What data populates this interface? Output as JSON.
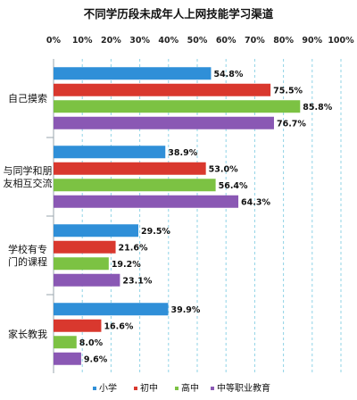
{
  "chart_data": {
    "type": "bar",
    "orientation": "horizontal",
    "title": "不同学历段未成年人上网技能学习渠道",
    "xlim": [
      0,
      100
    ],
    "x_ticks": [
      "0%",
      "10%",
      "20%",
      "30%",
      "40%",
      "50%",
      "60%",
      "70%",
      "80%",
      "90%",
      "100%"
    ],
    "grid": true,
    "legend_position": "bottom",
    "categories": [
      [
        "自己摸索"
      ],
      [
        "与同学和朋",
        "友相互交流"
      ],
      [
        "学校有专",
        "门的课程"
      ],
      [
        "家长教我"
      ]
    ],
    "series": [
      {
        "name": "小学",
        "color": "#2f8fd8",
        "values": [
          54.8,
          38.9,
          29.5,
          39.9
        ],
        "labels": [
          "54.8%",
          "38.9%",
          "29.5%",
          "39.9%"
        ]
      },
      {
        "name": "初中",
        "color": "#d9382e",
        "values": [
          75.5,
          53.0,
          21.6,
          16.6
        ],
        "labels": [
          "75.5%",
          "53.0%",
          "21.6%",
          "16.6%"
        ]
      },
      {
        "name": "高中",
        "color": "#7cc243",
        "values": [
          85.8,
          56.4,
          19.2,
          8.0
        ],
        "labels": [
          "85.8%",
          "56.4%",
          "19.2%",
          "8.0%"
        ]
      },
      {
        "name": "中等职业教育",
        "color": "#8a58b4",
        "values": [
          76.7,
          64.3,
          23.1,
          9.6
        ],
        "labels": [
          "76.7%",
          "64.3%",
          "23.1%",
          "9.6%"
        ]
      }
    ]
  }
}
